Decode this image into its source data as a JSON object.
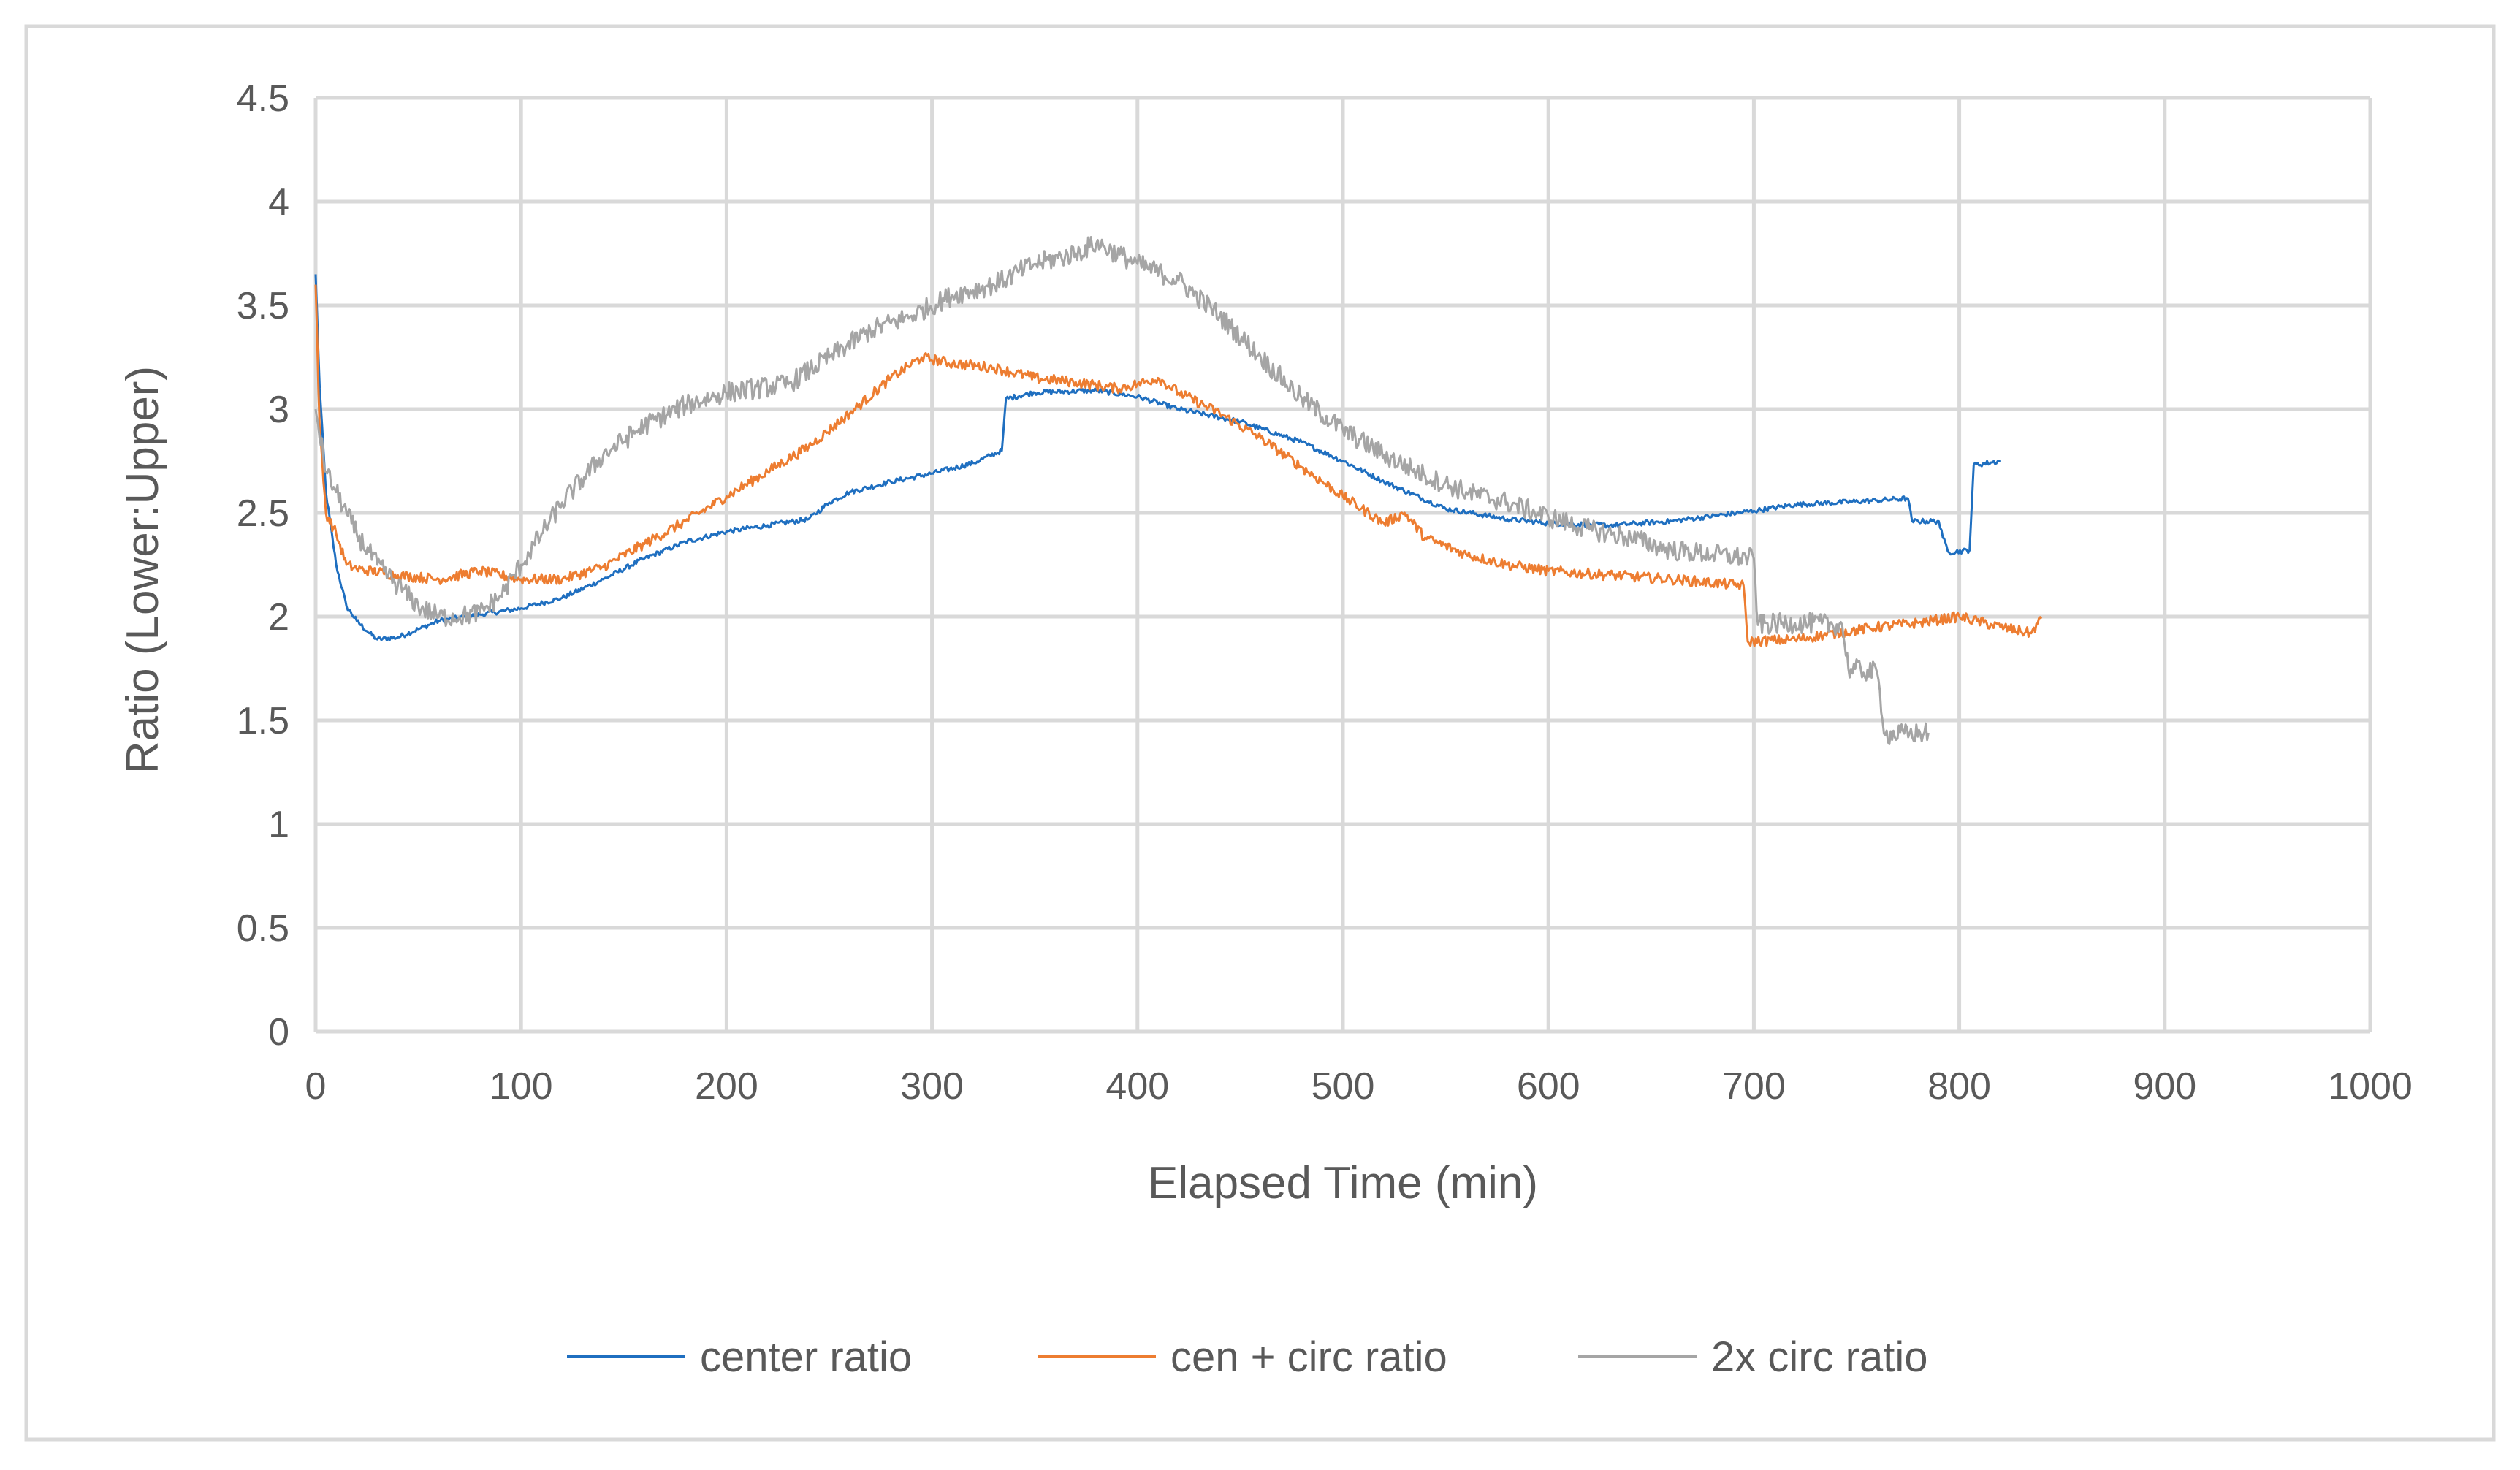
{
  "chart_data": {
    "type": "line",
    "title": "",
    "xlabel": "Elapsed Time (min)",
    "ylabel": "Ratio (Lower:Upper)",
    "xlim": [
      0,
      1000
    ],
    "ylim": [
      0,
      4.5
    ],
    "x_ticks": [
      0,
      100,
      200,
      300,
      400,
      500,
      600,
      700,
      800,
      900,
      1000
    ],
    "y_ticks": [
      0,
      0.5,
      1,
      1.5,
      2,
      2.5,
      3,
      3.5,
      4,
      4.5
    ],
    "x_tick_labels": [
      "0",
      "100",
      "200",
      "300",
      "400",
      "500",
      "600",
      "700",
      "800",
      "900",
      "1000"
    ],
    "y_tick_labels": [
      "0",
      "0.5",
      "1",
      "1.5",
      "2",
      "2.5",
      "3",
      "3.5",
      "4",
      "4.5"
    ],
    "grid": true,
    "legend_position": "bottom",
    "series": [
      {
        "name": "center ratio",
        "color": "#1F6FC0",
        "noise": 0.012,
        "points": [
          [
            0,
            3.65
          ],
          [
            2,
            3.1
          ],
          [
            5,
            2.6
          ],
          [
            10,
            2.25
          ],
          [
            15,
            2.05
          ],
          [
            20,
            1.98
          ],
          [
            25,
            1.93
          ],
          [
            30,
            1.89
          ],
          [
            40,
            1.9
          ],
          [
            50,
            1.94
          ],
          [
            60,
            1.98
          ],
          [
            80,
            2.01
          ],
          [
            100,
            2.04
          ],
          [
            120,
            2.09
          ],
          [
            140,
            2.18
          ],
          [
            160,
            2.28
          ],
          [
            180,
            2.36
          ],
          [
            200,
            2.41
          ],
          [
            220,
            2.44
          ],
          [
            240,
            2.47
          ],
          [
            250,
            2.55
          ],
          [
            260,
            2.6
          ],
          [
            280,
            2.65
          ],
          [
            300,
            2.69
          ],
          [
            320,
            2.74
          ],
          [
            334,
            2.8
          ],
          [
            336,
            3.05
          ],
          [
            350,
            3.08
          ],
          [
            380,
            3.09
          ],
          [
            400,
            3.06
          ],
          [
            420,
            3.0
          ],
          [
            450,
            2.94
          ],
          [
            480,
            2.84
          ],
          [
            500,
            2.75
          ],
          [
            520,
            2.65
          ],
          [
            550,
            2.52
          ],
          [
            580,
            2.47
          ],
          [
            600,
            2.45
          ],
          [
            630,
            2.44
          ],
          [
            660,
            2.46
          ],
          [
            700,
            2.51
          ],
          [
            720,
            2.54
          ],
          [
            760,
            2.56
          ],
          [
            775,
            2.57
          ],
          [
            777,
            2.46
          ],
          [
            790,
            2.46
          ],
          [
            792,
            2.38
          ],
          [
            795,
            2.31
          ],
          [
            805,
            2.32
          ],
          [
            807,
            2.73
          ],
          [
            820,
            2.75
          ]
        ]
      },
      {
        "name": "cen + circ ratio",
        "color": "#ED7D31",
        "noise": 0.025,
        "points": [
          [
            0,
            3.6
          ],
          [
            2,
            2.9
          ],
          [
            5,
            2.5
          ],
          [
            10,
            2.4
          ],
          [
            15,
            2.25
          ],
          [
            20,
            2.23
          ],
          [
            40,
            2.2
          ],
          [
            60,
            2.18
          ],
          [
            80,
            2.22
          ],
          [
            100,
            2.18
          ],
          [
            120,
            2.18
          ],
          [
            140,
            2.24
          ],
          [
            160,
            2.35
          ],
          [
            180,
            2.46
          ],
          [
            200,
            2.58
          ],
          [
            220,
            2.7
          ],
          [
            240,
            2.82
          ],
          [
            260,
            2.98
          ],
          [
            280,
            3.15
          ],
          [
            295,
            3.25
          ],
          [
            310,
            3.22
          ],
          [
            330,
            3.2
          ],
          [
            350,
            3.15
          ],
          [
            370,
            3.13
          ],
          [
            390,
            3.1
          ],
          [
            400,
            3.12
          ],
          [
            410,
            3.15
          ],
          [
            420,
            3.08
          ],
          [
            440,
            2.98
          ],
          [
            460,
            2.86
          ],
          [
            480,
            2.72
          ],
          [
            500,
            2.58
          ],
          [
            520,
            2.45
          ],
          [
            530,
            2.5
          ],
          [
            540,
            2.38
          ],
          [
            560,
            2.3
          ],
          [
            580,
            2.25
          ],
          [
            600,
            2.22
          ],
          [
            630,
            2.2
          ],
          [
            660,
            2.18
          ],
          [
            695,
            2.15
          ],
          [
            697,
            1.88
          ],
          [
            720,
            1.89
          ],
          [
            740,
            1.92
          ],
          [
            760,
            1.95
          ],
          [
            780,
            1.97
          ],
          [
            800,
            2.0
          ],
          [
            820,
            1.95
          ],
          [
            835,
            1.92
          ],
          [
            840,
            1.99
          ]
        ]
      },
      {
        "name": "2x circ ratio",
        "color": "#A5A5A5",
        "noise": 0.05,
        "points": [
          [
            0,
            3.0
          ],
          [
            5,
            2.7
          ],
          [
            10,
            2.6
          ],
          [
            15,
            2.5
          ],
          [
            20,
            2.4
          ],
          [
            30,
            2.25
          ],
          [
            40,
            2.15
          ],
          [
            50,
            2.05
          ],
          [
            60,
            2.0
          ],
          [
            70,
            2.0
          ],
          [
            80,
            2.02
          ],
          [
            90,
            2.1
          ],
          [
            100,
            2.25
          ],
          [
            110,
            2.4
          ],
          [
            120,
            2.55
          ],
          [
            140,
            2.78
          ],
          [
            160,
            2.92
          ],
          [
            180,
            3.02
          ],
          [
            200,
            3.08
          ],
          [
            230,
            3.12
          ],
          [
            250,
            3.25
          ],
          [
            270,
            3.38
          ],
          [
            290,
            3.45
          ],
          [
            310,
            3.55
          ],
          [
            330,
            3.6
          ],
          [
            350,
            3.7
          ],
          [
            370,
            3.75
          ],
          [
            380,
            3.8
          ],
          [
            400,
            3.7
          ],
          [
            420,
            3.62
          ],
          [
            440,
            3.45
          ],
          [
            460,
            3.25
          ],
          [
            480,
            3.05
          ],
          [
            500,
            2.9
          ],
          [
            520,
            2.78
          ],
          [
            540,
            2.68
          ],
          [
            560,
            2.6
          ],
          [
            580,
            2.55
          ],
          [
            600,
            2.48
          ],
          [
            620,
            2.42
          ],
          [
            640,
            2.38
          ],
          [
            660,
            2.32
          ],
          [
            680,
            2.3
          ],
          [
            700,
            2.28
          ],
          [
            702,
            1.96
          ],
          [
            720,
            1.97
          ],
          [
            743,
            1.96
          ],
          [
            746,
            1.75
          ],
          [
            760,
            1.73
          ],
          [
            764,
            1.43
          ],
          [
            785,
            1.44
          ]
        ]
      }
    ]
  }
}
